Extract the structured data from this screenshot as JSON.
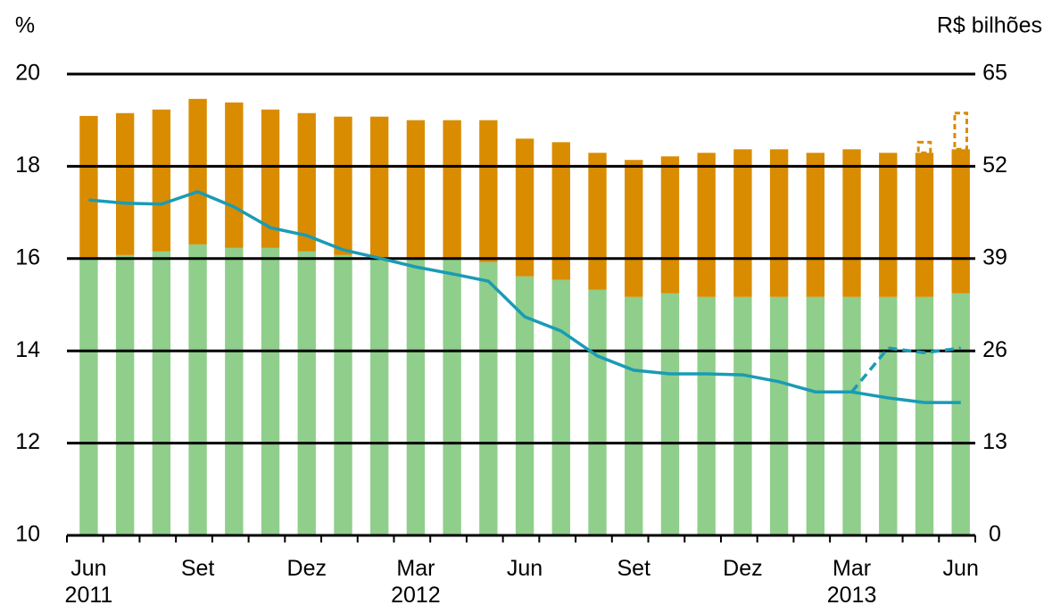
{
  "chart_data": {
    "type": "bar",
    "y_label": "%",
    "y2_label": "R$ bilhões",
    "categories": [
      "Jun 2011",
      null,
      null,
      "Set",
      null,
      null,
      "Dez",
      null,
      null,
      "Mar 2012",
      null,
      null,
      "Jun",
      null,
      null,
      "Set",
      null,
      null,
      "Dez",
      null,
      null,
      "Mar 2013",
      null,
      null,
      "Jun"
    ],
    "ylim": [
      10,
      20
    ],
    "yticks": [
      10,
      12,
      14,
      16,
      18,
      20
    ],
    "y2lim": [
      0,
      65
    ],
    "y2ticks": [
      0,
      13,
      26,
      39,
      52,
      65
    ],
    "grid": true,
    "stacked": true,
    "series": [
      {
        "type": "bar",
        "axis": "y2",
        "color": "#8fce8b",
        "dashed": false,
        "values": [
          39.0,
          39.5,
          40.0,
          41.0,
          40.5,
          40.5,
          40.0,
          39.5,
          39.2,
          39.0,
          39.0,
          38.5,
          36.5,
          36.0,
          34.6,
          33.6,
          34.1,
          33.6,
          33.6,
          33.6,
          33.6,
          33.6,
          33.6,
          33.6,
          34.1
        ]
      },
      {
        "type": "bar",
        "axis": "y2",
        "color": "#d98c00",
        "dashed": false,
        "values": [
          20.1,
          20.0,
          20.0,
          20.5,
          20.5,
          19.5,
          19.5,
          19.5,
          19.8,
          19.5,
          19.5,
          20.0,
          19.4,
          19.4,
          19.3,
          19.3,
          19.3,
          20.3,
          20.8,
          20.8,
          20.3,
          20.8,
          20.3,
          20.3,
          20.3
        ]
      },
      {
        "type": "bar",
        "axis": "y2",
        "color": "#d98c00",
        "dashed": true,
        "values": [
          null,
          null,
          null,
          null,
          null,
          null,
          null,
          null,
          null,
          null,
          null,
          null,
          null,
          null,
          null,
          null,
          null,
          null,
          null,
          null,
          null,
          null,
          null,
          1.5,
          5.1
        ]
      },
      {
        "type": "line",
        "axis": "y",
        "color": "#1a9bb5",
        "dashed": false,
        "values": [
          17.27,
          17.2,
          17.18,
          17.45,
          17.12,
          16.67,
          16.5,
          16.19,
          16.01,
          15.82,
          15.67,
          15.51,
          14.74,
          14.43,
          13.89,
          13.58,
          13.5,
          13.5,
          13.48,
          13.33,
          13.11,
          13.11,
          12.98,
          12.88,
          12.88
        ]
      },
      {
        "type": "line",
        "axis": "y",
        "color": "#1a9bb5",
        "dashed": true,
        "values": [
          null,
          null,
          null,
          null,
          null,
          null,
          null,
          null,
          null,
          null,
          null,
          null,
          null,
          null,
          null,
          null,
          null,
          null,
          null,
          null,
          null,
          13.11,
          14.06,
          13.96,
          14.06
        ]
      }
    ]
  }
}
